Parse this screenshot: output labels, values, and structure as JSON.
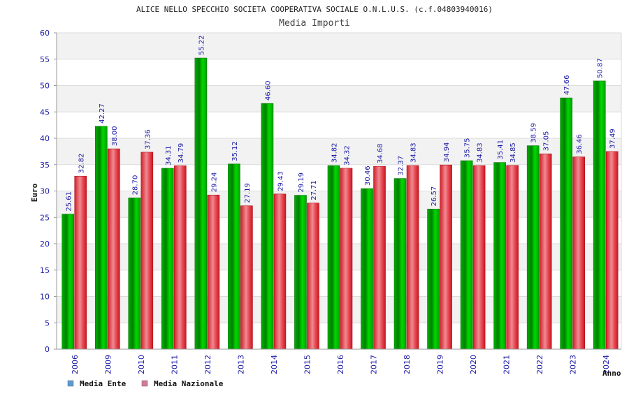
{
  "chart_data": {
    "type": "bar",
    "title": "ALICE NELLO SPECCHIO SOCIETA COOPERATIVA SOCIALE O.N.L.U.S. (c.f.04803940016)",
    "subtitle": "Media Importi",
    "xlabel": "Anno",
    "ylabel": "Euro",
    "ylim": [
      0,
      60
    ],
    "yticks": [
      0,
      5,
      10,
      15,
      20,
      25,
      30,
      35,
      40,
      45,
      50,
      55,
      60
    ],
    "grid": true,
    "legend_position": "bottom-left",
    "categories": [
      "2006",
      "2009",
      "2010",
      "2011",
      "2012",
      "2013",
      "2014",
      "2015",
      "2016",
      "2017",
      "2018",
      "2019",
      "2020",
      "2021",
      "2022",
      "2023",
      "2024"
    ],
    "series": [
      {
        "name": "Media Ente",
        "color": "#00b000",
        "legend_color": "#5b9bd5",
        "values": [
          25.61,
          42.27,
          28.7,
          34.31,
          55.22,
          35.12,
          46.6,
          29.19,
          34.82,
          30.46,
          32.37,
          26.57,
          35.75,
          35.41,
          38.59,
          47.66,
          50.87
        ],
        "labels": [
          "25.61",
          "42.27",
          "28.70",
          "34.31",
          "55.22",
          "35.12",
          "46.60",
          "29.19",
          "34.82",
          "30.46",
          "32.37",
          "26.57",
          "35.75",
          "35.41",
          "38.59",
          "47.66",
          "50.87"
        ]
      },
      {
        "name": "Media Nazionale",
        "color": "#e8303a",
        "legend_color": "#d4789c",
        "values": [
          32.82,
          38.0,
          37.36,
          34.79,
          29.24,
          27.19,
          29.43,
          27.71,
          34.32,
          34.68,
          34.83,
          34.94,
          34.83,
          34.85,
          37.05,
          36.46,
          37.49
        ],
        "labels": [
          "32.82",
          "38.00",
          "37.36",
          "34.79",
          "29.24",
          "27.19",
          "29.43",
          "27.71",
          "34.32",
          "34.68",
          "34.83",
          "34.94",
          "34.83",
          "34.85",
          "37.05",
          "36.46",
          "37.49"
        ]
      }
    ]
  }
}
